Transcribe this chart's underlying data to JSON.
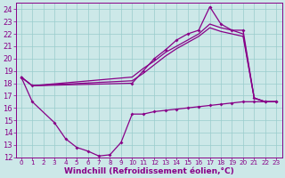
{
  "background_color": "#cce8e8",
  "grid_color": "#99cccc",
  "line_color": "#880088",
  "xlabel": "Windchill (Refroidissement éolien,°C)",
  "xlabel_fontsize": 6.5,
  "ytick_fontsize": 6,
  "xtick_fontsize": 5.2,
  "ylim": [
    12,
    24.5
  ],
  "xlim": [
    -0.5,
    23.5
  ],
  "yticks": [
    12,
    13,
    14,
    15,
    16,
    17,
    18,
    19,
    20,
    21,
    22,
    23,
    24
  ],
  "xticks": [
    0,
    1,
    2,
    3,
    4,
    5,
    6,
    7,
    8,
    9,
    10,
    11,
    12,
    13,
    14,
    15,
    16,
    17,
    18,
    19,
    20,
    21,
    22,
    23
  ],
  "line1_x": [
    0,
    1,
    10,
    11,
    12,
    13,
    14,
    15,
    16,
    17,
    18,
    19,
    20,
    21,
    22,
    23
  ],
  "line1_y": [
    18.5,
    17.8,
    18.0,
    19.0,
    20.0,
    20.7,
    21.5,
    22.0,
    22.3,
    24.2,
    22.8,
    22.3,
    22.3,
    16.8,
    16.5,
    16.5
  ],
  "line2_x": [
    0,
    1,
    10,
    11,
    12,
    13,
    14,
    15,
    16,
    17,
    18,
    19,
    20,
    21,
    22,
    23
  ],
  "line2_y": [
    18.5,
    17.8,
    18.5,
    19.2,
    19.8,
    20.5,
    21.0,
    21.5,
    22.0,
    22.8,
    22.5,
    22.3,
    22.0,
    16.8,
    16.5,
    16.5
  ],
  "line3_x": [
    0,
    1,
    10,
    11,
    12,
    13,
    14,
    15,
    16,
    17,
    18,
    19,
    20,
    21,
    22,
    23
  ],
  "line3_y": [
    18.5,
    17.8,
    18.2,
    18.8,
    19.5,
    20.2,
    20.8,
    21.3,
    21.8,
    22.5,
    22.2,
    22.0,
    21.8,
    16.8,
    16.5,
    16.5
  ],
  "line4_x": [
    0,
    1,
    3,
    4,
    5,
    6,
    7,
    8,
    9,
    10,
    11,
    12,
    13,
    14,
    15,
    16,
    17,
    18,
    19,
    20,
    21,
    22,
    23
  ],
  "line4_y": [
    18.5,
    16.5,
    14.8,
    13.5,
    12.8,
    12.5,
    12.1,
    12.2,
    13.2,
    15.5,
    15.5,
    15.7,
    15.8,
    15.9,
    16.0,
    16.1,
    16.2,
    16.3,
    16.4,
    16.5,
    16.5,
    16.5,
    16.5
  ]
}
